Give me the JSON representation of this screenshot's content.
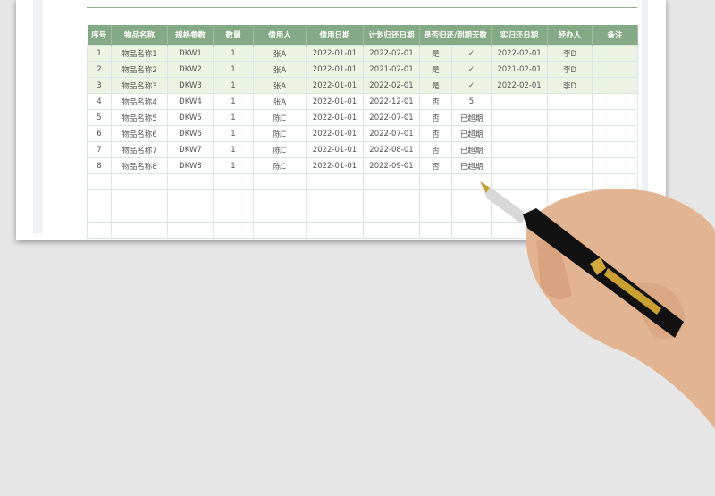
{
  "table": {
    "headers": [
      "序号",
      "物品名称",
      "规格参数",
      "数量",
      "借用人",
      "借用日期",
      "计划归还日期",
      "是否归还/到期天数",
      "",
      "实归还日期",
      "经办人",
      "备注"
    ],
    "rows": [
      [
        "1",
        "物品名称1",
        "DKW1",
        "1",
        "张A",
        "2022-01-01",
        "2022-02-01",
        "是",
        "✓",
        "2022-02-01",
        "李D",
        ""
      ],
      [
        "2",
        "物品名称2",
        "DKW2",
        "1",
        "张A",
        "2022-01-01",
        "2021-02-01",
        "是",
        "✓",
        "2021-02-01",
        "李D",
        ""
      ],
      [
        "3",
        "物品名称3",
        "DKW3",
        "1",
        "张A",
        "2022-01-01",
        "2022-02-01",
        "是",
        "✓",
        "2022-02-01",
        "李D",
        ""
      ],
      [
        "4",
        "物品名称4",
        "DKW4",
        "1",
        "张A",
        "2022-01-01",
        "2022-12-01",
        "否",
        "5",
        "",
        "",
        ""
      ],
      [
        "5",
        "物品名称5",
        "DKW5",
        "1",
        "陈C",
        "2022-01-01",
        "2022-07-01",
        "否",
        "已超期",
        "",
        "",
        ""
      ],
      [
        "6",
        "物品名称6",
        "DKW6",
        "1",
        "陈C",
        "2022-01-01",
        "2022-07-01",
        "否",
        "已超期",
        "",
        "",
        ""
      ],
      [
        "7",
        "物品名称7",
        "DKW7",
        "1",
        "陈C",
        "2022-01-01",
        "2022-08-01",
        "否",
        "已超期",
        "",
        "",
        ""
      ],
      [
        "8",
        "物品名称8",
        "DKW8",
        "1",
        "陈C",
        "2022-01-01",
        "2022-09-01",
        "否",
        "已超期",
        "",
        "",
        ""
      ]
    ],
    "empty_rows": 4
  },
  "colors": {
    "header": "#84a985",
    "returned_row": "#eef4e4"
  }
}
